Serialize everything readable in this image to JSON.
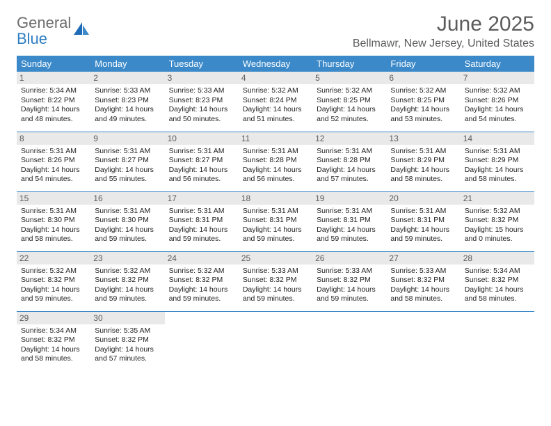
{
  "logo": {
    "general": "General",
    "blue": "Blue"
  },
  "title": "June 2025",
  "subtitle": "Bellmawr, New Jersey, United States",
  "colors": {
    "header_bg": "#3b89c9",
    "header_text": "#ffffff",
    "daynum_bg": "#e9e9e9",
    "daynum_text": "#5c5c5c",
    "border": "#3b89c9",
    "logo_gray": "#6d6d6d",
    "logo_blue": "#2f7fc3"
  },
  "weekdays": [
    "Sunday",
    "Monday",
    "Tuesday",
    "Wednesday",
    "Thursday",
    "Friday",
    "Saturday"
  ],
  "days": [
    {
      "n": "1",
      "sunrise": "5:34 AM",
      "sunset": "8:22 PM",
      "dl": "14 hours and 48 minutes."
    },
    {
      "n": "2",
      "sunrise": "5:33 AM",
      "sunset": "8:23 PM",
      "dl": "14 hours and 49 minutes."
    },
    {
      "n": "3",
      "sunrise": "5:33 AM",
      "sunset": "8:23 PM",
      "dl": "14 hours and 50 minutes."
    },
    {
      "n": "4",
      "sunrise": "5:32 AM",
      "sunset": "8:24 PM",
      "dl": "14 hours and 51 minutes."
    },
    {
      "n": "5",
      "sunrise": "5:32 AM",
      "sunset": "8:25 PM",
      "dl": "14 hours and 52 minutes."
    },
    {
      "n": "6",
      "sunrise": "5:32 AM",
      "sunset": "8:25 PM",
      "dl": "14 hours and 53 minutes."
    },
    {
      "n": "7",
      "sunrise": "5:32 AM",
      "sunset": "8:26 PM",
      "dl": "14 hours and 54 minutes."
    },
    {
      "n": "8",
      "sunrise": "5:31 AM",
      "sunset": "8:26 PM",
      "dl": "14 hours and 54 minutes."
    },
    {
      "n": "9",
      "sunrise": "5:31 AM",
      "sunset": "8:27 PM",
      "dl": "14 hours and 55 minutes."
    },
    {
      "n": "10",
      "sunrise": "5:31 AM",
      "sunset": "8:27 PM",
      "dl": "14 hours and 56 minutes."
    },
    {
      "n": "11",
      "sunrise": "5:31 AM",
      "sunset": "8:28 PM",
      "dl": "14 hours and 56 minutes."
    },
    {
      "n": "12",
      "sunrise": "5:31 AM",
      "sunset": "8:28 PM",
      "dl": "14 hours and 57 minutes."
    },
    {
      "n": "13",
      "sunrise": "5:31 AM",
      "sunset": "8:29 PM",
      "dl": "14 hours and 58 minutes."
    },
    {
      "n": "14",
      "sunrise": "5:31 AM",
      "sunset": "8:29 PM",
      "dl": "14 hours and 58 minutes."
    },
    {
      "n": "15",
      "sunrise": "5:31 AM",
      "sunset": "8:30 PM",
      "dl": "14 hours and 58 minutes."
    },
    {
      "n": "16",
      "sunrise": "5:31 AM",
      "sunset": "8:30 PM",
      "dl": "14 hours and 59 minutes."
    },
    {
      "n": "17",
      "sunrise": "5:31 AM",
      "sunset": "8:31 PM",
      "dl": "14 hours and 59 minutes."
    },
    {
      "n": "18",
      "sunrise": "5:31 AM",
      "sunset": "8:31 PM",
      "dl": "14 hours and 59 minutes."
    },
    {
      "n": "19",
      "sunrise": "5:31 AM",
      "sunset": "8:31 PM",
      "dl": "14 hours and 59 minutes."
    },
    {
      "n": "20",
      "sunrise": "5:31 AM",
      "sunset": "8:31 PM",
      "dl": "14 hours and 59 minutes."
    },
    {
      "n": "21",
      "sunrise": "5:32 AM",
      "sunset": "8:32 PM",
      "dl": "15 hours and 0 minutes."
    },
    {
      "n": "22",
      "sunrise": "5:32 AM",
      "sunset": "8:32 PM",
      "dl": "14 hours and 59 minutes."
    },
    {
      "n": "23",
      "sunrise": "5:32 AM",
      "sunset": "8:32 PM",
      "dl": "14 hours and 59 minutes."
    },
    {
      "n": "24",
      "sunrise": "5:32 AM",
      "sunset": "8:32 PM",
      "dl": "14 hours and 59 minutes."
    },
    {
      "n": "25",
      "sunrise": "5:33 AM",
      "sunset": "8:32 PM",
      "dl": "14 hours and 59 minutes."
    },
    {
      "n": "26",
      "sunrise": "5:33 AM",
      "sunset": "8:32 PM",
      "dl": "14 hours and 59 minutes."
    },
    {
      "n": "27",
      "sunrise": "5:33 AM",
      "sunset": "8:32 PM",
      "dl": "14 hours and 58 minutes."
    },
    {
      "n": "28",
      "sunrise": "5:34 AM",
      "sunset": "8:32 PM",
      "dl": "14 hours and 58 minutes."
    },
    {
      "n": "29",
      "sunrise": "5:34 AM",
      "sunset": "8:32 PM",
      "dl": "14 hours and 58 minutes."
    },
    {
      "n": "30",
      "sunrise": "5:35 AM",
      "sunset": "8:32 PM",
      "dl": "14 hours and 57 minutes."
    }
  ],
  "labels": {
    "sunrise": "Sunrise: ",
    "sunset": "Sunset: ",
    "daylight": "Daylight: "
  }
}
